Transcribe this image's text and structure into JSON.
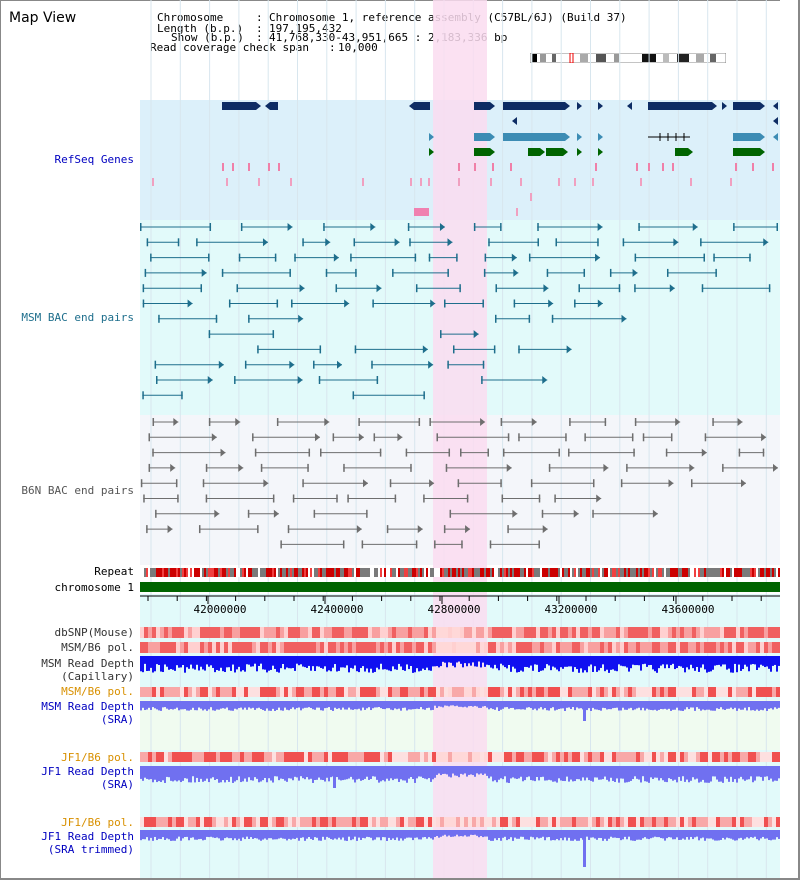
{
  "page": {
    "title": "Map View"
  },
  "info": {
    "chromosome_label": "Chromosome",
    "chromosome_value": "Chromosome 1, reference assembly (C57BL/6J) (Build 37)",
    "length_label": "Length (b.p.)",
    "length_value": "197,195,432",
    "show_label": "Show (b.p.)",
    "show_value": "41,768,330-43,951,665 : 2,183,336 bp",
    "span_label": "Read coverage check span",
    "span_value": "10,000"
  },
  "tracks": {
    "refseq": "RefSeq Genes",
    "msm_bac": "MSM BAC end pairs",
    "b6n_bac": "B6N BAC end pairs",
    "repeat": "Repeat",
    "chromosome": "chromosome 1",
    "dbsnp": "dbSNP(Mouse)",
    "msm_b6_pol_1": "MSM/B6 pol.",
    "msm_read_depth_cap_1": "MSM Read Depth",
    "msm_read_depth_cap_2": "(Capillary)",
    "msm_b6_pol_2": "MSM/B6 pol.",
    "msm_read_depth_sra_1": "MSM Read Depth",
    "msm_read_depth_sra_2": "(SRA)",
    "jf1_b6_pol_1": "JF1/B6 pol.",
    "jf1_read_depth_sra_1": "JF1 Read Depth",
    "jf1_read_depth_sra_2": "(SRA)",
    "jf1_b6_pol_2": "JF1/B6 pol.",
    "jf1_read_depth_trim_1": "JF1 Read Depth",
    "jf1_read_depth_trim_2": "(SRA trimmed)"
  },
  "axis": {
    "ticks": [
      "42000000",
      "42400000",
      "42800000",
      "43200000",
      "43600000"
    ]
  },
  "colors": {
    "refseq_bg": "#dcf0fa",
    "msm_bg": "#e2fafa",
    "b6n_bg": "#f4f6fa",
    "highlight": "#fadcf0",
    "label_blue": "#0000c0",
    "label_teal": "#1e6e8c",
    "label_orange": "#d89000",
    "gene_dark": "#0e2c64",
    "gene_mid": "#3c8cb4",
    "gene_green": "#006400",
    "msm_line": "#1e6e8c",
    "b6n_line": "#6e6e6e",
    "depth_blue": "#1010f0",
    "depth_light": "#7070f0"
  }
}
